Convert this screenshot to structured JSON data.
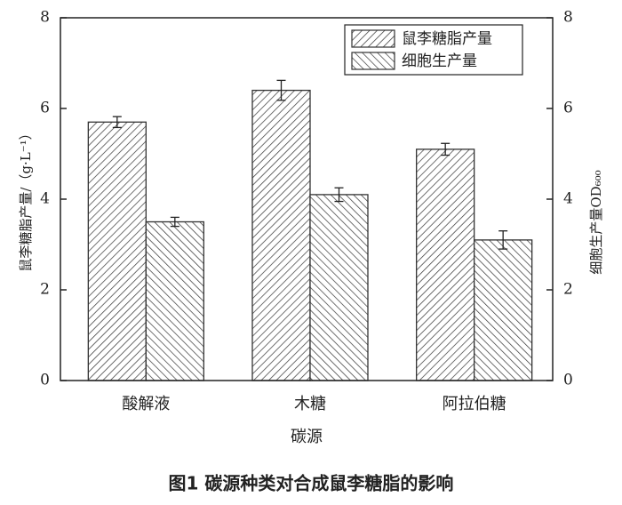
{
  "chart_data": {
    "type": "bar",
    "categories": [
      "酸解液",
      "木糖",
      "阿拉伯糖"
    ],
    "series": [
      {
        "name": "鼠李糖脂产量",
        "color": "#333333",
        "hatch": "/",
        "values": [
          5.7,
          6.4,
          5.1
        ],
        "errors": [
          0.12,
          0.22,
          0.13
        ]
      },
      {
        "name": "细胞生产量",
        "color": "#333333",
        "hatch": "\\",
        "axis": "y2",
        "values": [
          3.5,
          4.1,
          3.1
        ],
        "errors": [
          0.1,
          0.15,
          0.2
        ]
      }
    ],
    "xlabel": "碳源",
    "ylabel": "鼠李糖脂产量/（g·L⁻¹）",
    "y2label": "细胞生产量OD₆₀₀",
    "ylim": [
      0,
      8
    ],
    "yticks": [
      0,
      2,
      4,
      6,
      8
    ],
    "y2lim": [
      0,
      8
    ],
    "y2ticks": [
      0,
      2,
      4,
      6,
      8
    ],
    "legend": "upper right",
    "caption": "图1  碳源种类对合成鼠李糖脂的影响"
  }
}
